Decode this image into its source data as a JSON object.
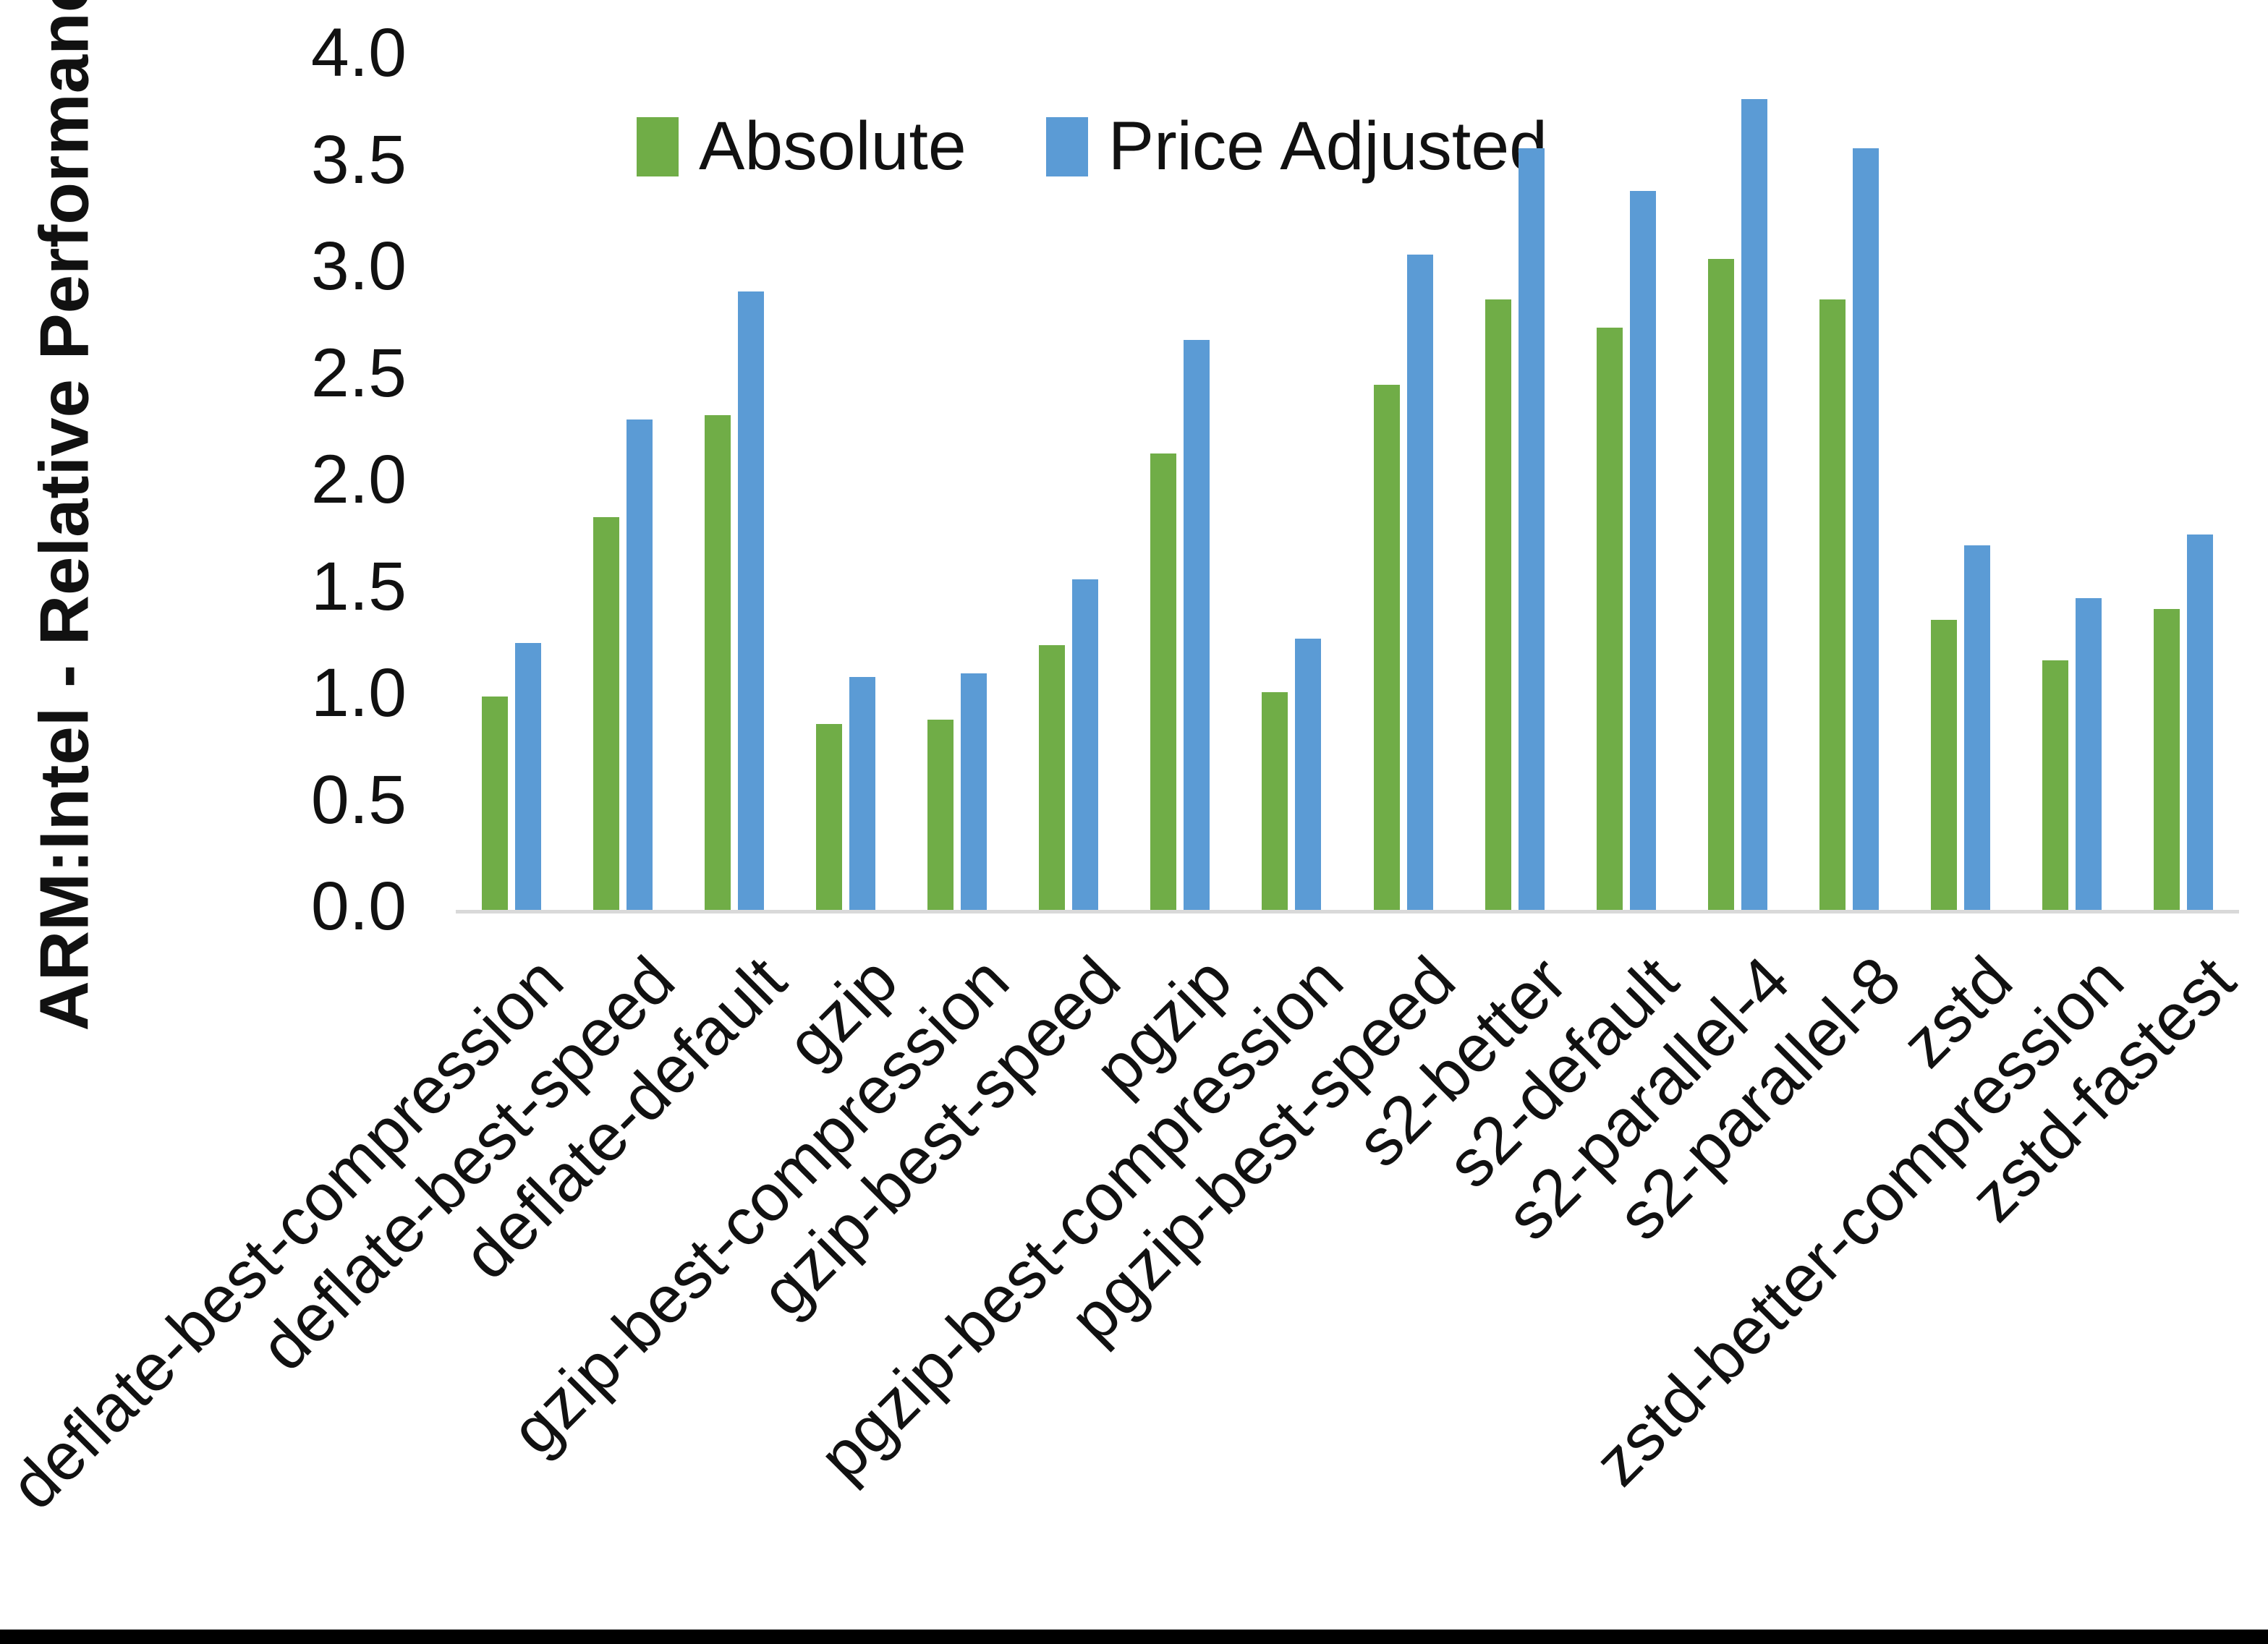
{
  "chart_data": {
    "type": "bar",
    "title": "",
    "xlabel": "",
    "ylabel": "ARM:Intel - Relative Performance",
    "ylim": [
      0,
      4
    ],
    "ytick_step": 0.5,
    "y_tick_labels": [
      "0.0",
      "0.5",
      "1.0",
      "1.5",
      "2.0",
      "2.5",
      "3.0",
      "3.5",
      "4.0"
    ],
    "grid": false,
    "legend_position": "top-center",
    "axis_line_color": "#d9d9d9",
    "text_color": "#111111",
    "categories": [
      "deflate-best-compression",
      "deflate-best-speed",
      "deflate-default",
      "gzip",
      "gzip-best-compression",
      "gzip-best-speed",
      "pgzip",
      "pgzip-best-compression",
      "pgzip-best-speed",
      "s2-better",
      "s2-default",
      "s2-parallel-4",
      "s2-parallel-8",
      "zstd",
      "zstd-better-compression",
      "zstd-fastest"
    ],
    "series": [
      {
        "name": "Absolute",
        "color": "#70AD47",
        "values": [
          1.0,
          1.84,
          2.32,
          0.87,
          0.89,
          1.24,
          2.14,
          1.02,
          2.46,
          2.86,
          2.73,
          3.05,
          2.86,
          1.36,
          1.17,
          1.41
        ]
      },
      {
        "name": "Price Adjusted",
        "color": "#5B9BD5",
        "values": [
          1.25,
          2.3,
          2.9,
          1.09,
          1.11,
          1.55,
          2.67,
          1.27,
          3.07,
          3.57,
          3.37,
          3.8,
          3.57,
          1.71,
          1.46,
          1.76
        ]
      }
    ]
  }
}
